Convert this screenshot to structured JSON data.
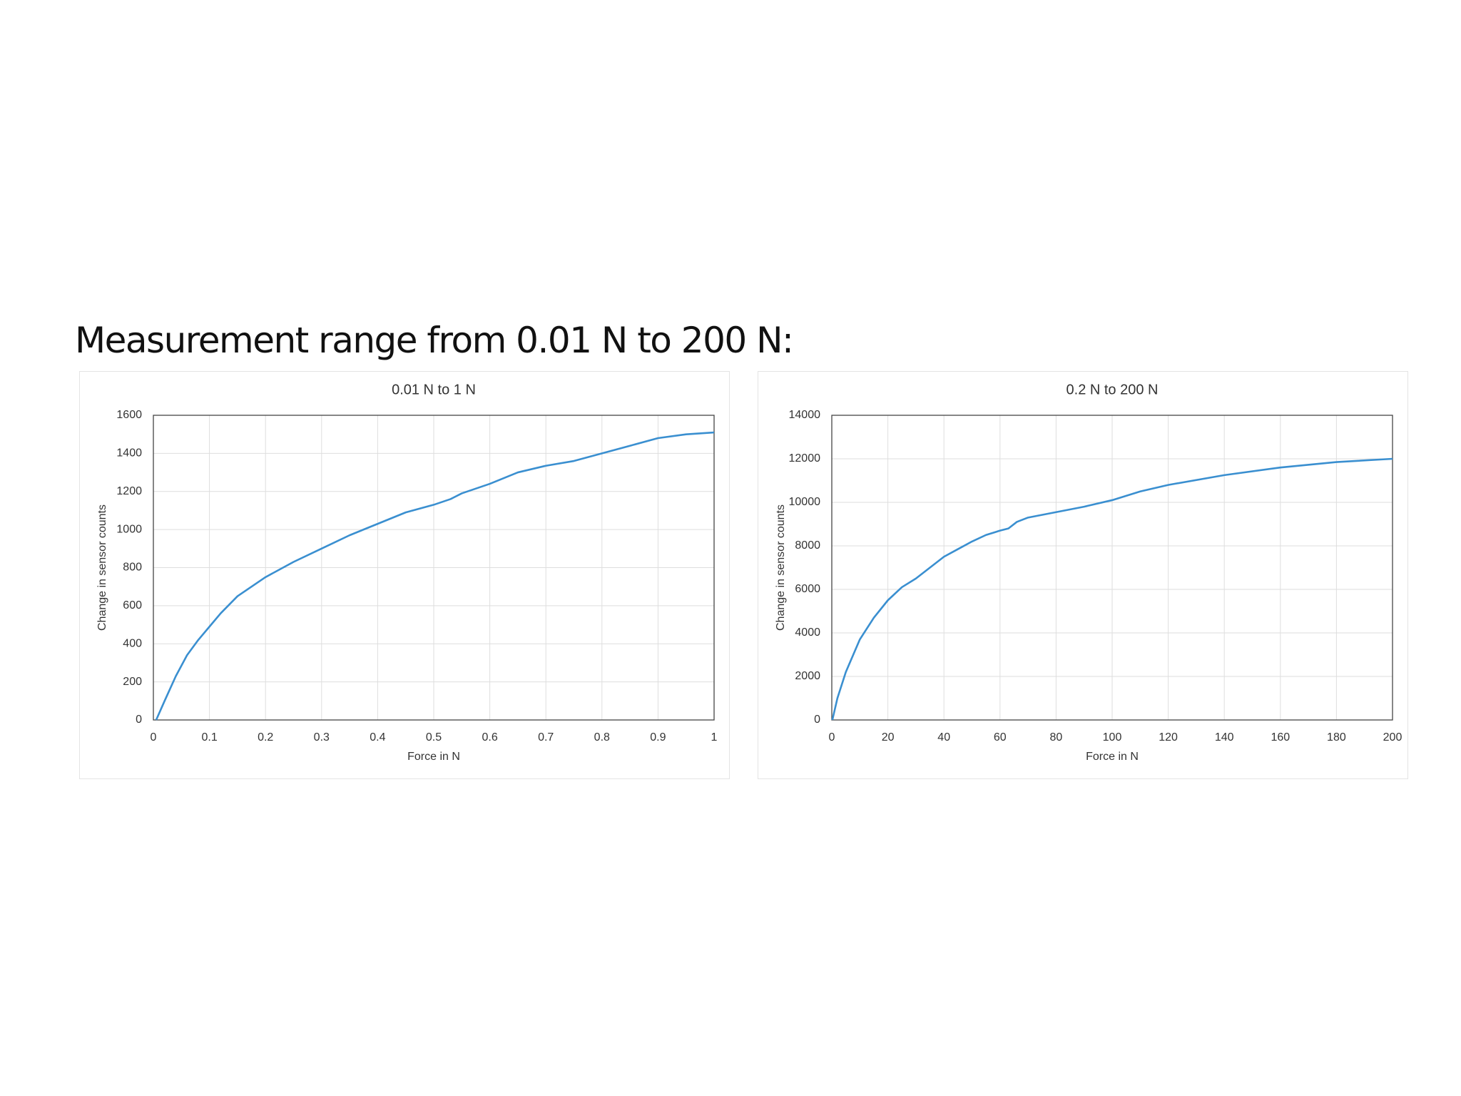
{
  "heading": "Measurement range from 0.01 N to 200 N:",
  "chart_data": [
    {
      "type": "line",
      "title": "0.01 N to 1 N",
      "x_label": "Force in N",
      "y_label": "Change in sensor counts",
      "x": [
        0.005,
        0.02,
        0.04,
        0.06,
        0.08,
        0.1,
        0.12,
        0.15,
        0.2,
        0.25,
        0.3,
        0.35,
        0.4,
        0.45,
        0.5,
        0.53,
        0.55,
        0.6,
        0.65,
        0.7,
        0.75,
        0.8,
        0.85,
        0.9,
        0.95,
        1
      ],
      "values": [
        0,
        100,
        230,
        340,
        420,
        490,
        560,
        650,
        750,
        830,
        900,
        970,
        1030,
        1090,
        1130,
        1160,
        1190,
        1240,
        1300,
        1335,
        1360,
        1400,
        1440,
        1480,
        1500,
        1510
      ],
      "color": "#3a8fd0",
      "grid": true,
      "xlim": [
        0,
        1
      ],
      "xticks": [
        0,
        0.1,
        0.2,
        0.3,
        0.4,
        0.5,
        0.6,
        0.7,
        0.8,
        0.9,
        1
      ],
      "ylim": [
        0,
        1600
      ],
      "yticks": [
        0,
        200,
        400,
        600,
        800,
        1000,
        1200,
        1400,
        1600
      ]
    },
    {
      "type": "line",
      "title": "0.2 N to 200 N",
      "x_label": "Force in N",
      "y_label": "Change in sensor counts",
      "x": [
        0.2,
        2,
        5,
        10,
        15,
        20,
        25,
        30,
        35,
        40,
        45,
        50,
        55,
        60,
        63,
        66,
        70,
        80,
        90,
        100,
        110,
        120,
        140,
        160,
        180,
        200
      ],
      "values": [
        0,
        1000,
        2200,
        3700,
        4700,
        5500,
        6100,
        6500,
        7000,
        7500,
        7850,
        8200,
        8500,
        8700,
        8800,
        9100,
        9300,
        9550,
        9800,
        10100,
        10500,
        10800,
        11250,
        11600,
        11850,
        12000
      ],
      "color": "#3a8fd0",
      "grid": true,
      "xlim": [
        0,
        200
      ],
      "xticks": [
        0,
        20,
        40,
        60,
        80,
        100,
        120,
        140,
        160,
        180,
        200
      ],
      "ylim": [
        0,
        14000
      ],
      "yticks": [
        0,
        2000,
        4000,
        6000,
        8000,
        10000,
        12000,
        14000
      ]
    }
  ]
}
